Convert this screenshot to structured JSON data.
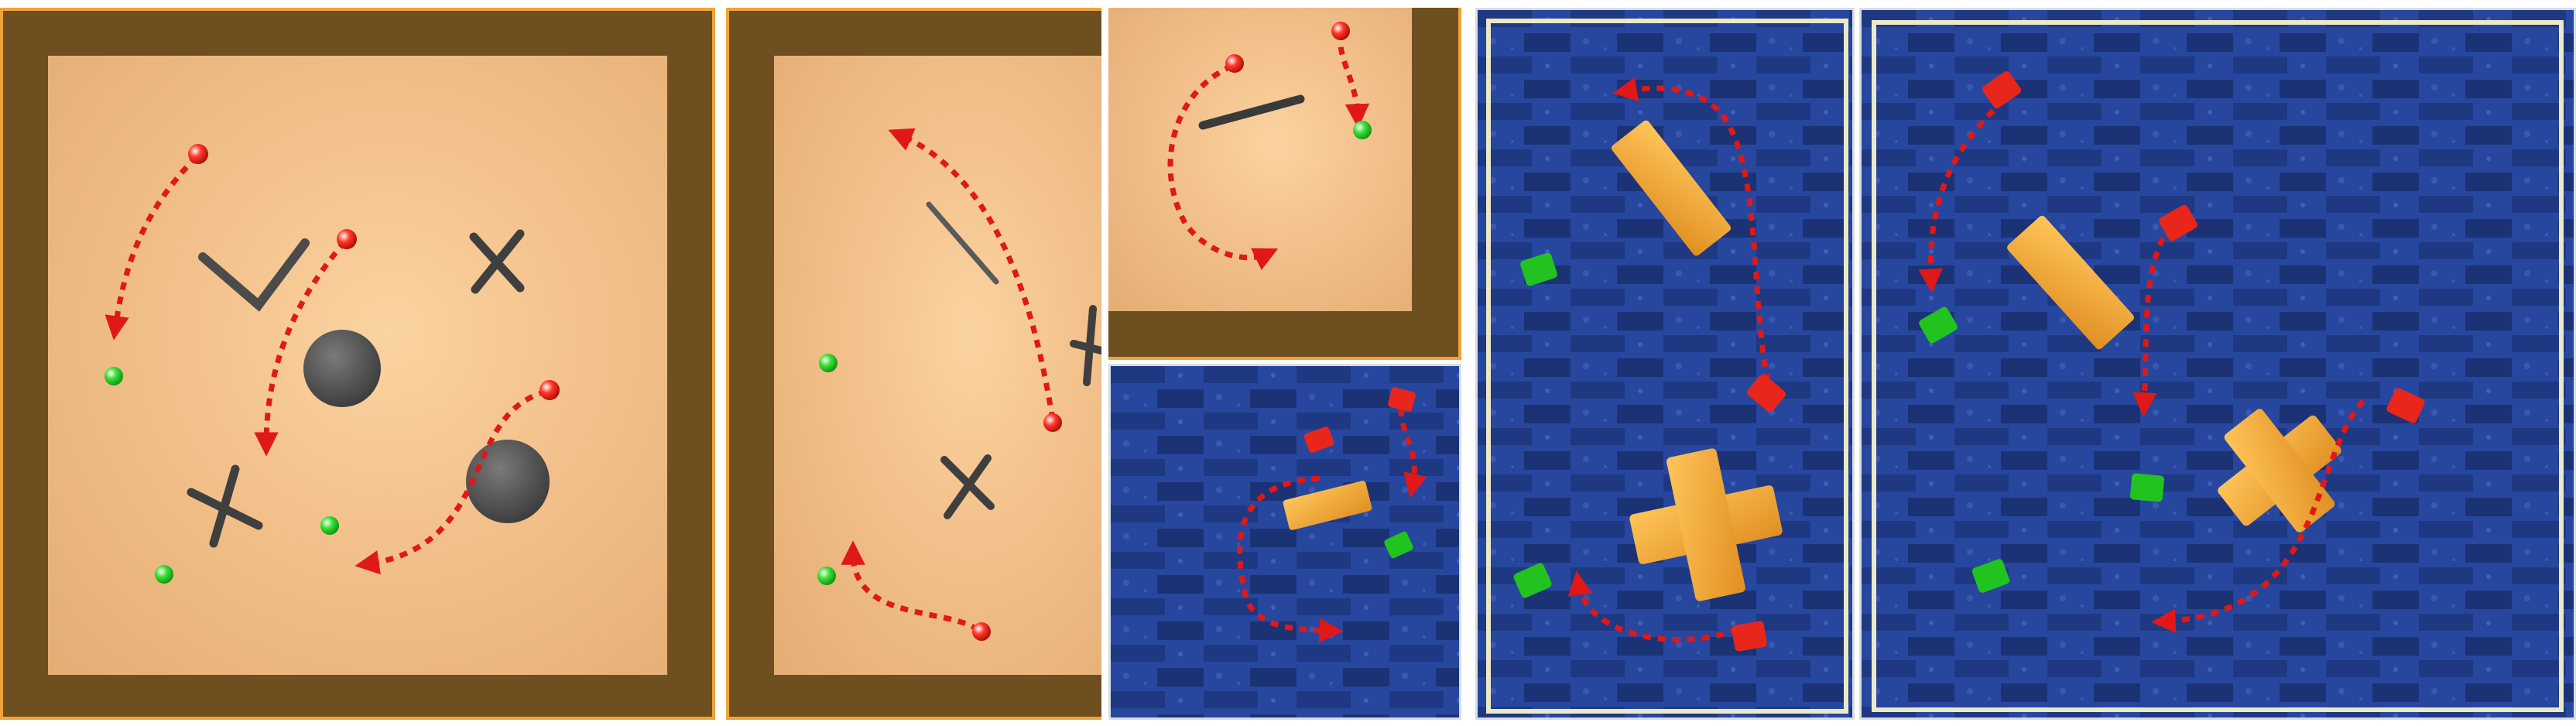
{
  "figure": {
    "panels": [
      {
        "id": "sim-large",
        "kind": "simulation",
        "robots": 3,
        "goals": 3,
        "obstacles": [
          "v-shape",
          "cylinder",
          "cross",
          "cross",
          "cylinder"
        ]
      },
      {
        "id": "sim-tall",
        "kind": "simulation",
        "robots": 2,
        "goals": 2,
        "obstacles": [
          "bar",
          "cross",
          "cross"
        ]
      },
      {
        "id": "sim-small",
        "kind": "simulation",
        "robots": 2,
        "goals": 1,
        "obstacles": [
          "bar"
        ]
      },
      {
        "id": "real-small",
        "kind": "real-robot",
        "robots": 2,
        "goals": 1,
        "obstacles": [
          "block"
        ]
      },
      {
        "id": "real-mid",
        "kind": "real-robot",
        "robots": 2,
        "goals": 2,
        "obstacles": [
          "block",
          "cross-block"
        ]
      },
      {
        "id": "real-large",
        "kind": "real-robot",
        "robots": 3,
        "goals": 3,
        "obstacles": [
          "block",
          "cross-block"
        ]
      }
    ],
    "colors": {
      "trajectory": "#e01818",
      "robot": "#e8261c",
      "goal": "#22c21f",
      "sim_wall": "#6e4f1f",
      "sim_border": "#f0a33a",
      "obstacle": "#4b4b4b",
      "block": "#f2a93b",
      "carpet": "#1f3b8f"
    }
  }
}
